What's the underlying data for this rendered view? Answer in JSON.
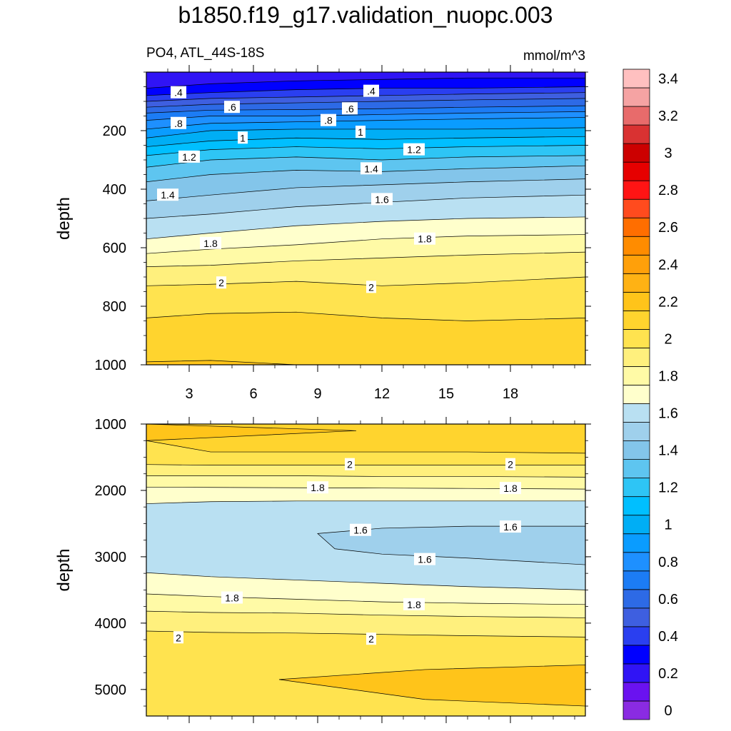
{
  "chart_data": {
    "title": "b1850.f19_g17.validation_nuopc.003",
    "variable_label": "PO4, ATL_44S-18S",
    "units": "mmol/m^3",
    "colorbar": {
      "labels": [
        "0",
        "0.2",
        "0.4",
        "0.6",
        "0.8",
        "1",
        "1.2",
        "1.4",
        "1.6",
        "1.8",
        "2",
        "2.2",
        "2.4",
        "2.6",
        "2.8",
        "3",
        "3.2",
        "3.4"
      ],
      "levels": [
        0,
        0.1,
        0.2,
        0.3,
        0.4,
        0.5,
        0.6,
        0.7,
        0.8,
        0.9,
        1.0,
        1.1,
        1.2,
        1.3,
        1.4,
        1.5,
        1.6,
        1.7,
        1.8,
        1.9,
        2.0,
        2.1,
        2.2,
        2.3,
        2.4,
        2.5,
        2.6,
        2.7,
        2.8,
        2.9,
        3.0,
        3.1,
        3.2,
        3.3,
        3.4,
        3.5
      ],
      "colors": [
        "#8a2be2",
        "#6a12f0",
        "#3014f5",
        "#0000ff",
        "#2a3ff0",
        "#3e5fe0",
        "#2d6ae6",
        "#1c7cf5",
        "#1e90ff",
        "#0a9cff",
        "#00aef5",
        "#00bfff",
        "#2ec5f5",
        "#5ec5f0",
        "#83c5ea",
        "#9fd0ec",
        "#b9e0f2",
        "#ffffcc",
        "#fffaa6",
        "#fff07d",
        "#ffe34f",
        "#ffd42e",
        "#ffc41a",
        "#ffb214",
        "#ffa00a",
        "#ff8c00",
        "#ff6e00",
        "#ff4b1e",
        "#ff1414",
        "#e60000",
        "#cc0000",
        "#d93232",
        "#e86b6b",
        "#f5a3a3",
        "#ffc0c0"
      ]
    },
    "panels": [
      {
        "name": "upper",
        "type": "contour",
        "ylabel": "depth",
        "x_range": [
          1,
          21.5
        ],
        "y_range": [
          0,
          1000
        ],
        "y_inverted": true,
        "x_ticks": [
          "3",
          "6",
          "9",
          "12",
          "15",
          "18"
        ],
        "x_tick_values": [
          3,
          6,
          9,
          12,
          15,
          18
        ],
        "y_ticks": [
          "200",
          "400",
          "600",
          "800",
          "1000"
        ],
        "y_tick_values": [
          200,
          400,
          600,
          800,
          1000
        ],
        "x_nodes": [
          1,
          4,
          8,
          12,
          16,
          21.5
        ],
        "contours": [
          {
            "level": 0.3,
            "depth": [
              55,
              40,
              30,
              25,
              20,
              20
            ]
          },
          {
            "level": 0.4,
            "depth": [
              80,
              70,
              60,
              55,
              55,
              50
            ]
          },
          {
            "level": 0.5,
            "depth": [
              100,
              90,
              85,
              80,
              75,
              70
            ]
          },
          {
            "level": 0.6,
            "depth": [
              120,
              110,
              105,
              100,
              95,
              90
            ]
          },
          {
            "level": 0.7,
            "depth": [
              140,
              130,
              128,
              125,
              120,
              115
            ]
          },
          {
            "level": 0.8,
            "depth": [
              165,
              150,
              150,
              145,
              140,
              135
            ]
          },
          {
            "level": 0.9,
            "depth": [
              195,
              175,
              170,
              165,
              160,
              155
            ]
          },
          {
            "level": 1.0,
            "depth": [
              225,
              200,
              195,
              195,
              195,
              190
            ]
          },
          {
            "level": 1.1,
            "depth": [
              255,
              235,
              225,
              230,
              225,
              220
            ]
          },
          {
            "level": 1.2,
            "depth": [
              285,
              265,
              255,
              262,
              255,
              250
            ]
          },
          {
            "level": 1.3,
            "depth": [
              325,
              300,
              290,
              300,
              290,
              285
            ]
          },
          {
            "level": 1.4,
            "depth": [
              375,
              350,
              335,
              340,
              330,
              320
            ]
          },
          {
            "level": 1.5,
            "depth": [
              440,
              420,
              395,
              385,
              375,
              365
            ]
          },
          {
            "level": 1.6,
            "depth": [
              500,
              485,
              460,
              445,
              430,
              420
            ]
          },
          {
            "level": 1.7,
            "depth": [
              570,
              550,
              525,
              510,
              500,
              495
            ]
          },
          {
            "level": 1.8,
            "depth": [
              620,
              605,
              590,
              570,
              560,
              555
            ]
          },
          {
            "level": 1.9,
            "depth": [
              665,
              660,
              645,
              635,
              625,
              615
            ]
          },
          {
            "level": 2.0,
            "depth": [
              730,
              725,
              715,
              730,
              720,
              700
            ]
          },
          {
            "level": 2.1,
            "depth": [
              840,
              825,
              820,
              840,
              850,
              840
            ]
          },
          {
            "level": 2.2,
            "depth": [
              990,
              985,
              1000,
              1000,
              1000,
              1000
            ]
          }
        ],
        "labels": [
          {
            "text": ".4",
            "x": 2.5,
            "depth": 70
          },
          {
            "text": ".4",
            "x": 11.5,
            "depth": 65
          },
          {
            "text": ".6",
            "x": 5.0,
            "depth": 120
          },
          {
            "text": ".6",
            "x": 10.5,
            "depth": 125
          },
          {
            "text": ".8",
            "x": 2.5,
            "depth": 175
          },
          {
            "text": ".8",
            "x": 9.5,
            "depth": 165
          },
          {
            "text": "1",
            "x": 5.5,
            "depth": 225
          },
          {
            "text": "1",
            "x": 11.0,
            "depth": 205
          },
          {
            "text": "1.2",
            "x": 3.0,
            "depth": 290
          },
          {
            "text": "1.2",
            "x": 13.5,
            "depth": 265
          },
          {
            "text": "1.4",
            "x": 11.5,
            "depth": 330
          },
          {
            "text": "1.4",
            "x": 2.0,
            "depth": 420
          },
          {
            "text": "1.6",
            "x": 12.0,
            "depth": 435
          },
          {
            "text": "1.8",
            "x": 4.0,
            "depth": 585
          },
          {
            "text": "1.8",
            "x": 14.0,
            "depth": 570
          },
          {
            "text": "2",
            "x": 4.5,
            "depth": 720
          },
          {
            "text": "2",
            "x": 11.5,
            "depth": 735
          }
        ]
      },
      {
        "name": "lower",
        "type": "contour",
        "ylabel": "depth",
        "x_range": [
          1,
          21.5
        ],
        "y_range": [
          1000,
          5400
        ],
        "y_inverted": true,
        "x_ticks": [],
        "x_tick_values": [
          3,
          6,
          9,
          12,
          15,
          18
        ],
        "y_ticks": [
          "1000",
          "2000",
          "3000",
          "4000",
          "5000"
        ],
        "y_tick_values": [
          1000,
          2000,
          3000,
          4000,
          5000
        ],
        "x_nodes": [
          1,
          4,
          8,
          12,
          16,
          21.5
        ],
        "contours": [
          {
            "level": 2.1,
            "depth": [
              1250,
              1420,
              1420,
              1420,
              1420,
              1440
            ]
          },
          {
            "level": 2.0,
            "depth": [
              1610,
              1620,
              1620,
              1620,
              1620,
              1620
            ]
          },
          {
            "level": 1.9,
            "depth": [
              1780,
              1780,
              1780,
              1790,
              1790,
              1800
            ]
          },
          {
            "level": 1.8,
            "depth": [
              1950,
              1955,
              1960,
              1965,
              1970,
              1980
            ]
          },
          {
            "level": 1.7,
            "depth": [
              2200,
              2170,
              2160,
              2160,
              2160,
              2160
            ]
          },
          {
            "level": 1.7,
            "depth": [
              3240,
              3300,
              3350,
              3400,
              3450,
              3500
            ]
          },
          {
            "level": 1.8,
            "depth": [
              3560,
              3600,
              3640,
              3680,
              3700,
              3720
            ]
          },
          {
            "level": 1.9,
            "depth": [
              3820,
              3840,
              3850,
              3880,
              3900,
              3920
            ]
          },
          {
            "level": 2.0,
            "depth": [
              4120,
              4140,
              4150,
              4170,
              4190,
              4210
            ]
          }
        ],
        "labels": [
          {
            "text": "2",
            "x": 10.5,
            "depth": 1610
          },
          {
            "text": "2",
            "x": 18.0,
            "depth": 1610
          },
          {
            "text": "1.8",
            "x": 9.0,
            "depth": 1960
          },
          {
            "text": "1.8",
            "x": 18.0,
            "depth": 1970
          },
          {
            "text": "1.6",
            "x": 11.0,
            "depth": 2600
          },
          {
            "text": "1.6",
            "x": 18.0,
            "depth": 2550
          },
          {
            "text": "1.6",
            "x": 14.0,
            "depth": 3040
          },
          {
            "text": "1.8",
            "x": 5.0,
            "depth": 3620
          },
          {
            "text": "1.8",
            "x": 13.5,
            "depth": 3720
          },
          {
            "text": "2",
            "x": 2.5,
            "depth": 4220
          },
          {
            "text": "2",
            "x": 11.5,
            "depth": 4240
          }
        ]
      }
    ]
  }
}
